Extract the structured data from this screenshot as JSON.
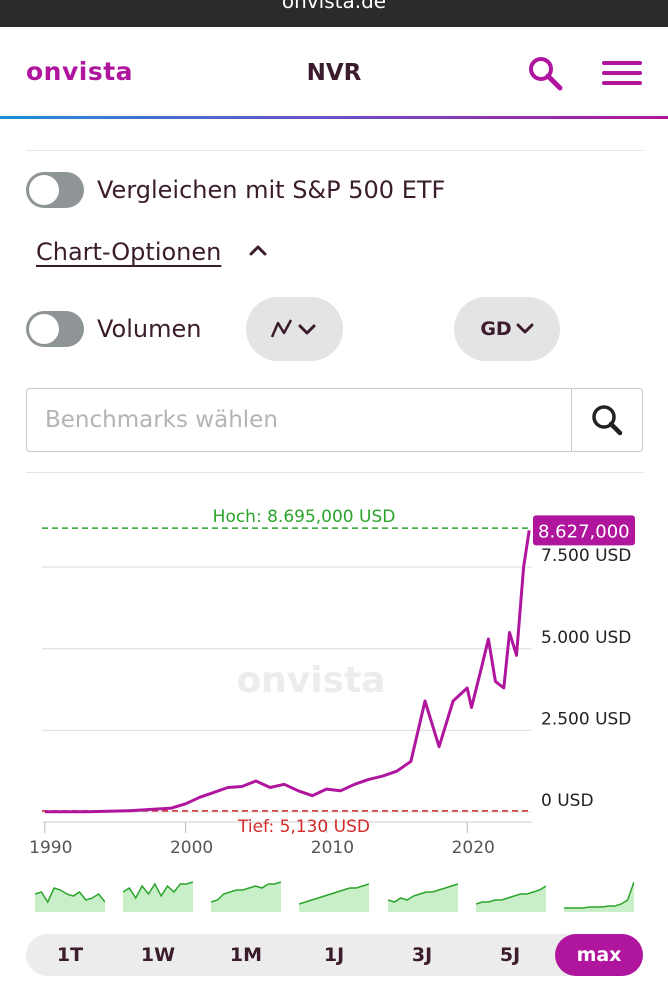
{
  "browser": {
    "url_text": "onvista.de"
  },
  "header": {
    "brand": "onvista",
    "ticker": "NVR"
  },
  "compare": {
    "label": "Vergleichen mit S&P 500 ETF",
    "enabled": false
  },
  "chart_options": {
    "label": "Chart-Optionen"
  },
  "volume": {
    "label": "Volumen",
    "enabled": false
  },
  "period_select": {
    "label": "GD"
  },
  "benchmark": {
    "placeholder": "Benchmarks wählen",
    "value": ""
  },
  "colors": {
    "brand": "#b0159e",
    "high": "#2aa52a",
    "low": "#d42a2a",
    "spark": "#2aa52a"
  },
  "chart_data": {
    "type": "line",
    "x": [
      1990,
      1993,
      1996,
      1999,
      2000,
      2001,
      2002,
      2003,
      2004,
      2005,
      2006,
      2007,
      2008,
      2009,
      2010,
      2011,
      2012,
      2013,
      2014,
      2015,
      2016,
      2017,
      2018,
      2019,
      2020,
      2020.3,
      2021,
      2021.5,
      2022,
      2022.6,
      2023,
      2023.5,
      2024,
      2024.4
    ],
    "values": [
      5,
      10,
      40,
      120,
      250,
      450,
      600,
      750,
      780,
      950,
      750,
      850,
      650,
      500,
      700,
      650,
      850,
      1000,
      1100,
      1250,
      1550,
      3400,
      2000,
      3400,
      3800,
      3200,
      4400,
      5300,
      4000,
      3800,
      5500,
      4800,
      7500,
      8627
    ],
    "ylim": [
      0,
      8700
    ],
    "yticks": [
      "0 USD",
      "2.500 USD",
      "5.000 USD",
      "7.500 USD"
    ],
    "ytick_values": [
      0,
      2500,
      5000,
      7500
    ],
    "xticks": [
      "1990",
      "2000",
      "2010",
      "2020"
    ],
    "xtick_values": [
      1990,
      2000,
      2010,
      2020
    ],
    "high_label": "Hoch: 8.695,000 USD",
    "high_value": 8695,
    "low_label": "Tief: 5,130 USD",
    "low_value": 5.13,
    "last_label": "8.627,000",
    "last_value": 8627
  },
  "watermark": "onvista",
  "ranges": [
    "1T",
    "1W",
    "1M",
    "1J",
    "3J",
    "5J",
    "max"
  ],
  "active_range": "max"
}
